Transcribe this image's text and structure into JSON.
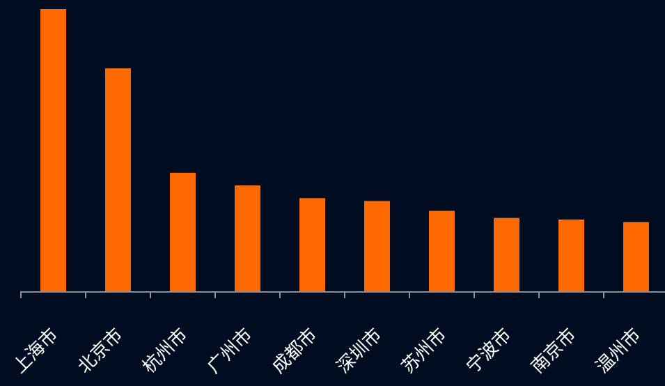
{
  "colors": {
    "background": "#000c20",
    "bar": "#ff6a00",
    "axis": "#8a8f99",
    "label": "#ffffff"
  },
  "chart_data": {
    "type": "bar",
    "categories": [
      "上海市",
      "北京市",
      "杭州市",
      "广州市",
      "成都市",
      "深圳市",
      "苏州市",
      "宁波市",
      "南京市",
      "温州市"
    ],
    "values": [
      100,
      79,
      42,
      37.5,
      33,
      32,
      28.5,
      26,
      25.4,
      24.5
    ],
    "ylim": [
      0,
      100
    ],
    "grid": false,
    "legend": "none"
  }
}
